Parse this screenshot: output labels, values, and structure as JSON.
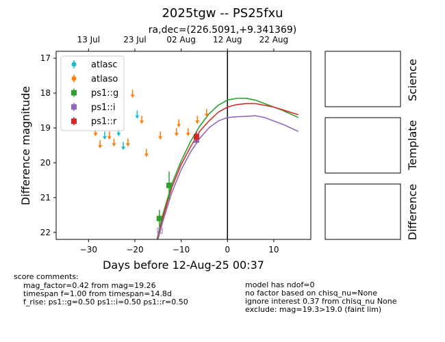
{
  "title": "2025tgw -- PS25fxu",
  "subtitle": "ra,dec=(226.5091,+9.341369)",
  "chart_data": {
    "type": "scatter",
    "xlabel": "Days before 12-Aug-25 00:37",
    "ylabel": "Difference magnitude",
    "xlim": [
      -37,
      18
    ],
    "ylim": [
      22.2,
      16.8
    ],
    "y_inverted": true,
    "x_ticks": [
      -30,
      -20,
      -10,
      0,
      10
    ],
    "y_ticks": [
      17,
      18,
      19,
      20,
      21,
      22
    ],
    "top_axis_ticks": [
      {
        "label": "13 Jul",
        "x": -30
      },
      {
        "label": "23 Jul",
        "x": -20
      },
      {
        "label": "02 Aug",
        "x": -10
      },
      {
        "label": "12 Aug",
        "x": 0
      },
      {
        "label": "22 Aug",
        "x": 10
      }
    ],
    "vline_x": 0,
    "legend_position": "top-left",
    "series": [
      {
        "name": "atlasc",
        "color": "#17becf",
        "marker": "circle",
        "upper_limits": [
          [
            -26.5,
            19.2
          ],
          [
            -23.5,
            19.1
          ],
          [
            -22.5,
            19.5
          ],
          [
            -19.5,
            18.6
          ]
        ],
        "points": []
      },
      {
        "name": "atlaso",
        "color": "#ff7f0e",
        "marker": "circle",
        "upper_limits": [
          [
            -28.5,
            19.1
          ],
          [
            -27.5,
            19.45
          ],
          [
            -25.5,
            19.2
          ],
          [
            -24.5,
            19.4
          ],
          [
            -21.5,
            19.4
          ],
          [
            -20.5,
            18.0
          ],
          [
            -18.5,
            18.75
          ],
          [
            -17.5,
            19.7
          ],
          [
            -14.5,
            19.2
          ],
          [
            -11.0,
            19.1
          ],
          [
            -10.5,
            18.85
          ],
          [
            -8.5,
            19.1
          ],
          [
            -6.5,
            18.75
          ],
          [
            -4.5,
            18.55
          ]
        ],
        "points": []
      },
      {
        "name": "ps1::g",
        "color": "#2ca02c",
        "marker": "square",
        "points": [
          [
            -14.7,
            21.6,
            0.25
          ],
          [
            -12.6,
            20.65,
            0.4
          ]
        ],
        "upper_limits": []
      },
      {
        "name": "ps1::i",
        "color": "#9467bd",
        "marker": "square",
        "points": [
          [
            -6.7,
            19.35,
            0.1
          ]
        ],
        "open_points": [
          [
            -14.6,
            21.95
          ]
        ],
        "upper_limits": []
      },
      {
        "name": "ps1::r",
        "color": "#d62728",
        "marker": "square",
        "points": [
          [
            -6.7,
            19.25,
            0.15
          ]
        ],
        "upper_limits": []
      }
    ],
    "model_curves": [
      {
        "name": "g",
        "color": "#2ca02c",
        "x": [
          -15.2,
          -14,
          -12,
          -10,
          -8,
          -6,
          -4,
          -2,
          0,
          2,
          4,
          6,
          8,
          10,
          12,
          15.3
        ],
        "y": [
          22.2,
          21.5,
          20.6,
          19.95,
          19.4,
          18.95,
          18.6,
          18.35,
          18.2,
          18.15,
          18.15,
          18.2,
          18.3,
          18.4,
          18.5,
          18.7
        ]
      },
      {
        "name": "r",
        "color": "#d62728",
        "x": [
          -15.1,
          -14,
          -12,
          -10,
          -8,
          -6,
          -4,
          -2,
          0,
          2,
          4,
          6,
          8,
          10,
          12,
          15.3
        ],
        "y": [
          22.2,
          21.6,
          20.7,
          20.05,
          19.55,
          19.1,
          18.8,
          18.55,
          18.4,
          18.33,
          18.3,
          18.3,
          18.35,
          18.4,
          18.48,
          18.62
        ]
      },
      {
        "name": "i",
        "color": "#9467bd",
        "x": [
          -15.0,
          -14,
          -12,
          -10,
          -8,
          -6,
          -4,
          -2,
          0,
          2,
          4,
          6,
          8,
          10,
          12,
          15.3
        ],
        "y": [
          22.2,
          21.7,
          20.85,
          20.2,
          19.7,
          19.3,
          19.0,
          18.8,
          18.7,
          18.68,
          18.67,
          18.65,
          18.7,
          18.8,
          18.9,
          19.1
        ]
      }
    ]
  },
  "side_panels": [
    {
      "label": "Science"
    },
    {
      "label": "Template"
    },
    {
      "label": "Difference"
    }
  ],
  "score_comments": {
    "heading": "score comments:",
    "left": [
      "mag_factor=0.42 from mag=19.26",
      "timespan f=1.00 from timespan=14.8d",
      "f_rise: ps1::g=0.50 ps1::i=0.50 ps1::r=0.50"
    ],
    "right": [
      "model has ndof=0",
      "no factor based on chisq_nu=None",
      "ignore interest 0.37 from chisq_nu None",
      "exclude: mag=19.3>19.0 (faint lim)"
    ]
  }
}
